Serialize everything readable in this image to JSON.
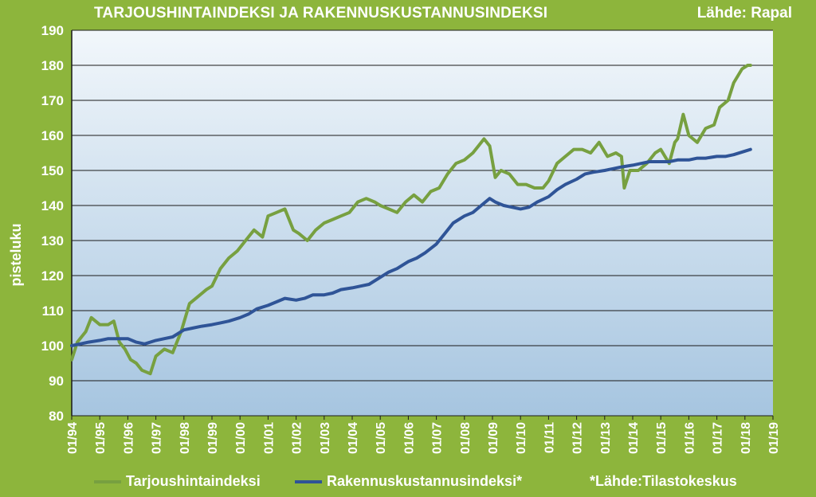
{
  "header": {
    "title": "TARJOUSHINTAINDEKSI JA RAKENNUSKUSTANNUSINDEKSI",
    "source": "Lähde: Rapal"
  },
  "footnote": "*Lähde:Tilastokeskus",
  "colors": {
    "background": "#8db53c",
    "green_series": "#77a040",
    "blue_series": "#2f5497",
    "plot_top": "#f2f7fb",
    "plot_bottom": "#a6c5e0"
  },
  "chart_data": {
    "type": "line",
    "title": "TARJOUSHINTAINDEKSI JA RAKENNUSKUSTANNUSINDEKSI",
    "xlabel": "",
    "ylabel": "pisteluku",
    "xlim": [
      1994,
      2019
    ],
    "ylim": [
      80,
      190
    ],
    "yticks": [
      80,
      90,
      100,
      110,
      120,
      130,
      140,
      150,
      160,
      170,
      180,
      190
    ],
    "xticks": [
      "01/94",
      "01/95",
      "01/96",
      "01/97",
      "01/98",
      "01/99",
      "01/00",
      "01/01",
      "01/02",
      "01/03",
      "01/04",
      "01/05",
      "01/06",
      "01/07",
      "01/08",
      "01/09",
      "01/10",
      "01/11",
      "01/12",
      "01/13",
      "01/14",
      "01/15",
      "01/16",
      "01/17",
      "01/18",
      "01/19"
    ],
    "grid": true,
    "legend_position": "bottom",
    "series": [
      {
        "name": "Tarjoushintaindeksi",
        "color": "#77a040",
        "x": [
          1994.0,
          1994.2,
          1994.5,
          1994.7,
          1995.0,
          1995.3,
          1995.5,
          1995.7,
          1995.9,
          1996.1,
          1996.3,
          1996.5,
          1996.8,
          1997.0,
          1997.3,
          1997.6,
          1997.9,
          1998.2,
          1998.5,
          1998.8,
          1999.0,
          1999.3,
          1999.6,
          1999.9,
          2000.2,
          2000.5,
          2000.8,
          2001.0,
          2001.3,
          2001.6,
          2001.9,
          2002.1,
          2002.4,
          2002.7,
          2003.0,
          2003.3,
          2003.6,
          2003.9,
          2004.2,
          2004.5,
          2004.8,
          2005.0,
          2005.3,
          2005.6,
          2005.9,
          2006.2,
          2006.5,
          2006.8,
          2007.1,
          2007.4,
          2007.7,
          2008.0,
          2008.3,
          2008.5,
          2008.7,
          2008.9,
          2009.1,
          2009.3,
          2009.6,
          2009.9,
          2010.2,
          2010.5,
          2010.8,
          2011.0,
          2011.3,
          2011.6,
          2011.9,
          2012.2,
          2012.5,
          2012.8,
          2013.1,
          2013.4,
          2013.6,
          2013.7,
          2013.9,
          2014.2,
          2014.5,
          2014.8,
          2015.0,
          2015.3,
          2015.5,
          2015.6,
          2015.8,
          2016.0,
          2016.3,
          2016.6,
          2016.9,
          2017.1,
          2017.4,
          2017.6,
          2017.9,
          2018.1,
          2018.2
        ],
        "values": [
          96,
          101,
          104,
          108,
          106,
          106,
          107,
          101,
          99,
          96,
          95,
          93,
          92,
          97,
          99,
          98,
          104,
          112,
          114,
          116,
          117,
          122,
          125,
          127,
          130,
          133,
          131,
          137,
          138,
          139,
          133,
          132,
          130,
          133,
          135,
          136,
          137,
          138,
          141,
          142,
          141,
          140,
          139,
          138,
          141,
          143,
          141,
          144,
          145,
          149,
          152,
          153,
          155,
          157,
          159,
          157,
          148,
          150,
          149,
          146,
          146,
          145,
          145,
          147,
          152,
          154,
          156,
          156,
          155,
          158,
          154,
          155,
          154,
          145,
          150,
          150,
          152,
          155,
          156,
          152,
          158,
          159,
          166,
          160,
          158,
          162,
          163,
          168,
          170,
          175,
          179,
          180,
          180
        ]
      },
      {
        "name": "Rakennuskustannusindeksi*",
        "color": "#2f5497",
        "x": [
          1994.0,
          1994.3,
          1994.6,
          1995.0,
          1995.3,
          1995.6,
          1996.0,
          1996.3,
          1996.6,
          1997.0,
          1997.3,
          1997.6,
          1998.0,
          1998.3,
          1998.6,
          1999.0,
          1999.3,
          1999.6,
          2000.0,
          2000.3,
          2000.6,
          2001.0,
          2001.3,
          2001.6,
          2002.0,
          2002.3,
          2002.6,
          2003.0,
          2003.3,
          2003.6,
          2004.0,
          2004.3,
          2004.6,
          2005.0,
          2005.3,
          2005.6,
          2006.0,
          2006.3,
          2006.6,
          2007.0,
          2007.3,
          2007.6,
          2008.0,
          2008.3,
          2008.6,
          2008.9,
          2009.1,
          2009.4,
          2009.7,
          2010.0,
          2010.3,
          2010.6,
          2011.0,
          2011.3,
          2011.6,
          2012.0,
          2012.3,
          2012.6,
          2013.0,
          2013.3,
          2013.6,
          2014.0,
          2014.3,
          2014.6,
          2015.0,
          2015.3,
          2015.6,
          2016.0,
          2016.3,
          2016.6,
          2017.0,
          2017.3,
          2017.6,
          2018.0,
          2018.2
        ],
        "values": [
          100,
          100.5,
          101,
          101.5,
          102,
          102,
          102,
          101,
          100.5,
          101.5,
          102,
          102.5,
          104.5,
          105,
          105.5,
          106,
          106.5,
          107,
          108,
          109,
          110.5,
          111.5,
          112.5,
          113.5,
          113,
          113.5,
          114.5,
          114.5,
          115,
          116,
          116.5,
          117,
          117.5,
          119.5,
          121,
          122,
          124,
          125,
          126.5,
          129,
          132,
          135,
          137,
          138,
          140,
          142,
          141,
          140,
          139.5,
          139,
          139.5,
          141,
          142.5,
          144.5,
          146,
          147.5,
          149,
          149.5,
          150,
          150.5,
          151,
          151.5,
          152,
          152.5,
          152.5,
          152.5,
          153,
          153,
          153.5,
          153.5,
          154,
          154,
          154.5,
          155.5,
          156
        ]
      }
    ]
  }
}
